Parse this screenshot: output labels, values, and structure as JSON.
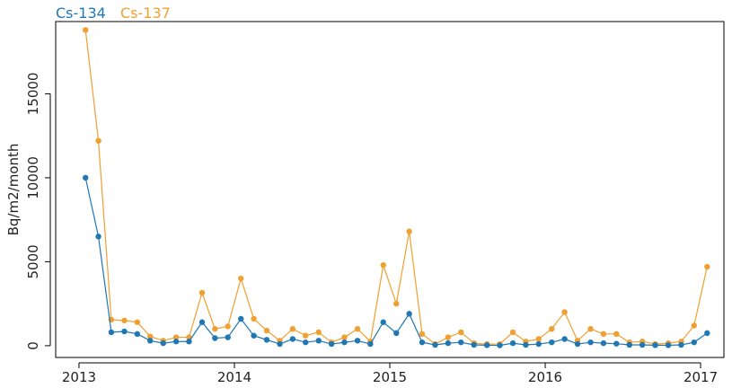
{
  "chart_data": {
    "type": "line",
    "ylabel": "Bq/m2/month",
    "xlim": [
      2012.85,
      2017.15
    ],
    "ylim": [
      -700,
      19300
    ],
    "xticks": [
      2013,
      2014,
      2015,
      2016,
      2017
    ],
    "yticks": [
      0,
      5000,
      10000,
      15000
    ],
    "grid": false,
    "legend": "top-left",
    "x": [
      2013.042,
      2013.125,
      2013.208,
      2013.292,
      2013.375,
      2013.458,
      2013.542,
      2013.625,
      2013.708,
      2013.792,
      2013.875,
      2013.958,
      2014.042,
      2014.125,
      2014.208,
      2014.292,
      2014.375,
      2014.458,
      2014.542,
      2014.625,
      2014.708,
      2014.792,
      2014.875,
      2014.958,
      2015.042,
      2015.125,
      2015.208,
      2015.292,
      2015.375,
      2015.458,
      2015.542,
      2015.625,
      2015.708,
      2015.792,
      2015.875,
      2015.958,
      2016.042,
      2016.125,
      2016.208,
      2016.292,
      2016.375,
      2016.458,
      2016.542,
      2016.625,
      2016.708,
      2016.792,
      2016.875,
      2016.958,
      2017.042
    ],
    "series": [
      {
        "name": "Cs-134",
        "color": "#1f77b4",
        "values": [
          10000,
          6500,
          800,
          850,
          700,
          300,
          150,
          250,
          250,
          1400,
          450,
          500,
          1600,
          600,
          350,
          100,
          400,
          200,
          300,
          100,
          200,
          300,
          100,
          1400,
          750,
          1900,
          200,
          50,
          150,
          200,
          50,
          30,
          20,
          150,
          50,
          100,
          200,
          400,
          100,
          200,
          150,
          120,
          50,
          50,
          30,
          30,
          50,
          200,
          750
        ]
      },
      {
        "name": "Cs-137",
        "color": "#f0a030",
        "values": [
          18800,
          12200,
          1550,
          1500,
          1400,
          550,
          300,
          500,
          500,
          3150,
          1000,
          1150,
          4000,
          1600,
          900,
          300,
          1000,
          600,
          800,
          200,
          500,
          1000,
          250,
          4800,
          2500,
          6800,
          700,
          100,
          500,
          800,
          150,
          100,
          100,
          800,
          250,
          400,
          1000,
          2000,
          300,
          1000,
          700,
          700,
          200,
          250,
          100,
          150,
          250,
          1200,
          4700
        ]
      }
    ]
  }
}
